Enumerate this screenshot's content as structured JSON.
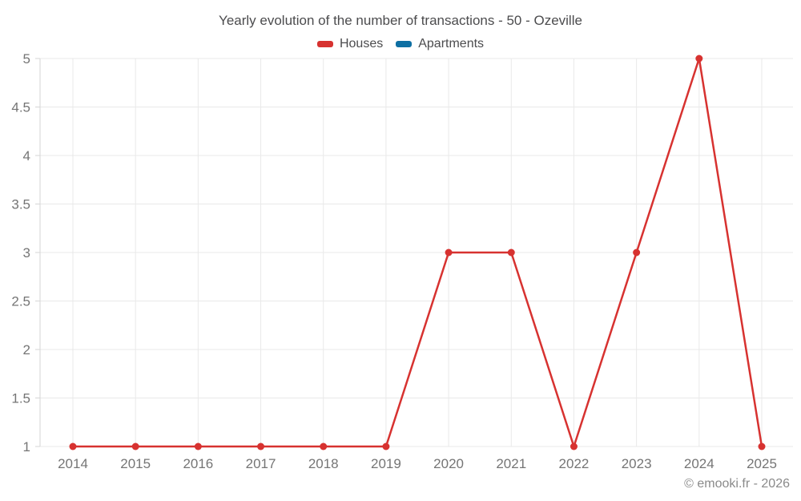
{
  "chart_data": {
    "type": "line",
    "title": "Yearly evolution of the number of transactions - 50 - Ozeville",
    "categories": [
      "2014",
      "2015",
      "2016",
      "2017",
      "2018",
      "2019",
      "2020",
      "2021",
      "2022",
      "2023",
      "2024",
      "2025"
    ],
    "series": [
      {
        "name": "Houses",
        "color": "#d73230",
        "values": [
          1,
          1,
          1,
          1,
          1,
          1,
          3,
          3,
          1,
          3,
          5,
          1
        ]
      },
      {
        "name": "Apartments",
        "color": "#0e6fa3",
        "values": []
      }
    ],
    "xlabel": "",
    "ylabel": "",
    "ylim": [
      1,
      5
    ],
    "ytick_step": 0.5,
    "yticks": [
      "1",
      "1.5",
      "2",
      "2.5",
      "3",
      "3.5",
      "4",
      "4.5",
      "5"
    ],
    "grid": true,
    "legend_position": "top",
    "footer": "© emooki.fr - 2026",
    "colors": {
      "grid": "#e9e9e9",
      "axis": "#d6d6d6",
      "tick_label": "#757575",
      "title_text": "#4c4c4e",
      "footer_text": "#8a8a8a"
    }
  }
}
